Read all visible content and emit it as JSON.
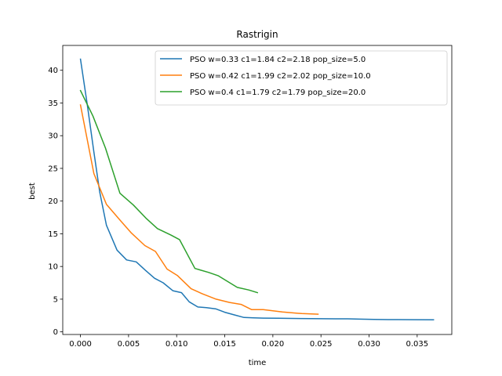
{
  "chart_data": {
    "type": "line",
    "title": "Rastrigin",
    "xlabel": "time",
    "ylabel": "best",
    "xlim": [
      -0.00184,
      0.0386
    ],
    "ylim": [
      -0.4,
      43.8
    ],
    "xticks": [
      0.0,
      0.005,
      0.01,
      0.015,
      0.02,
      0.025,
      0.03,
      0.035
    ],
    "xtick_labels": [
      "0.000",
      "0.005",
      "0.010",
      "0.015",
      "0.020",
      "0.025",
      "0.030",
      "0.035"
    ],
    "yticks": [
      0,
      5,
      10,
      15,
      20,
      25,
      30,
      35,
      40
    ],
    "ytick_labels": [
      "0",
      "5",
      "10",
      "15",
      "20",
      "25",
      "30",
      "35",
      "40"
    ],
    "grid": false,
    "legend_position": "top-right",
    "series": [
      {
        "name": "PSO w=0.33 c1=1.84 c2=2.18 pop_size=5.0",
        "color": "#1f77b4",
        "x": [
          0.0,
          0.0007,
          0.0014,
          0.002,
          0.0027,
          0.0038,
          0.0048,
          0.0058,
          0.0067,
          0.0077,
          0.0086,
          0.0096,
          0.0105,
          0.0113,
          0.0122,
          0.0131,
          0.0141,
          0.015,
          0.016,
          0.017,
          0.018,
          0.019,
          0.0205,
          0.022,
          0.024,
          0.0265,
          0.0278,
          0.029,
          0.0305,
          0.032,
          0.0345,
          0.0367
        ],
        "y": [
          41.7,
          34.8,
          27.5,
          21.4,
          16.3,
          12.5,
          11.0,
          10.7,
          9.5,
          8.2,
          7.5,
          6.3,
          6.0,
          4.6,
          3.8,
          3.7,
          3.5,
          3.0,
          2.6,
          2.2,
          2.15,
          2.1,
          2.08,
          2.05,
          2.03,
          2.0,
          2.0,
          1.95,
          1.9,
          1.88,
          1.86,
          1.85
        ]
      },
      {
        "name": "PSO w=0.42 c1=1.99 c2=2.02 pop_size=10.0",
        "color": "#ff7f0e",
        "x": [
          0.0,
          0.0014,
          0.0027,
          0.0041,
          0.0053,
          0.0067,
          0.0078,
          0.009,
          0.0101,
          0.0115,
          0.0127,
          0.0141,
          0.0155,
          0.0167,
          0.0178,
          0.019,
          0.021,
          0.023,
          0.0247
        ],
        "y": [
          34.7,
          24.2,
          19.5,
          17.1,
          15.1,
          13.2,
          12.3,
          9.6,
          8.6,
          6.6,
          5.8,
          5.0,
          4.5,
          4.2,
          3.4,
          3.4,
          3.05,
          2.8,
          2.7
        ]
      },
      {
        "name": "PSO w=0.4 c1=1.79 c2=1.79 pop_size=20.0",
        "color": "#2ca02c",
        "x": [
          0.0,
          0.0013,
          0.0026,
          0.0041,
          0.0055,
          0.0068,
          0.008,
          0.0094,
          0.0103,
          0.0119,
          0.0133,
          0.0143,
          0.0163,
          0.0175,
          0.0184
        ],
        "y": [
          36.9,
          33.0,
          28.1,
          21.2,
          19.4,
          17.4,
          15.8,
          14.8,
          14.1,
          9.7,
          9.1,
          8.6,
          6.8,
          6.4,
          6.0
        ]
      }
    ]
  }
}
